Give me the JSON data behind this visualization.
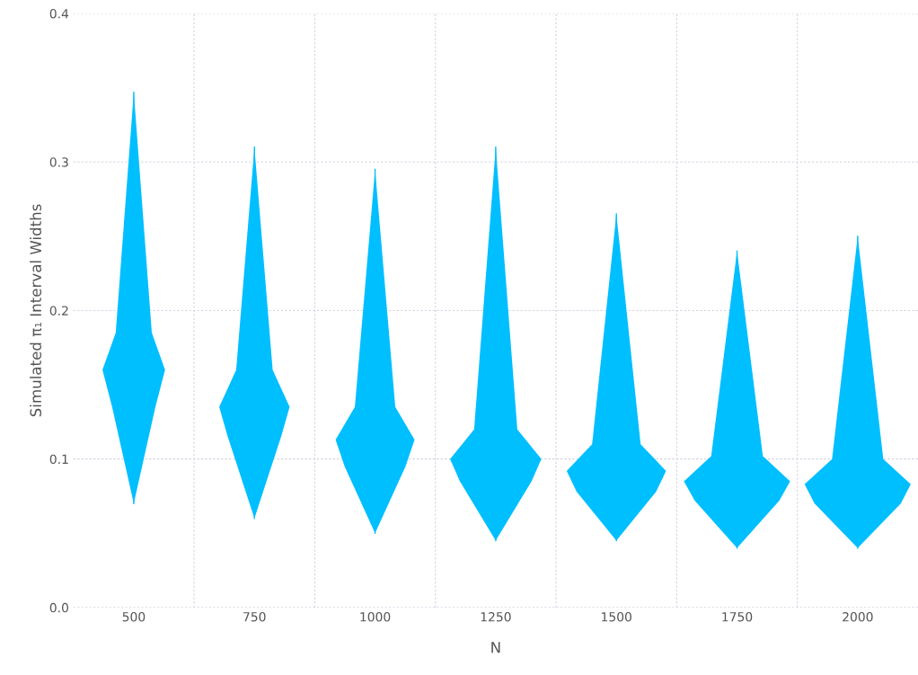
{
  "chart_data": {
    "type": "box",
    "xlabel": "N",
    "ylabel": "Simulated π₁ Interval Widths",
    "categories": [
      "500",
      "750",
      "1000",
      "1250",
      "1500",
      "1750",
      "2000"
    ],
    "ylim": [
      0,
      0.4
    ],
    "yticks": [
      {
        "value": 0,
        "label": "0.0"
      },
      0.1,
      0.2,
      0.3,
      0.4
    ],
    "grid": true,
    "color": "#00bfff",
    "boxes": [
      {
        "low": 0.07,
        "q1": 0.135,
        "median": 0.16,
        "q3": 0.185,
        "high": 0.347
      },
      {
        "low": 0.06,
        "q1": 0.115,
        "median": 0.135,
        "q3": 0.16,
        "high": 0.31
      },
      {
        "low": 0.05,
        "q1": 0.095,
        "median": 0.113,
        "q3": 0.135,
        "high": 0.295
      },
      {
        "low": 0.045,
        "q1": 0.085,
        "median": 0.1,
        "q3": 0.12,
        "high": 0.31
      },
      {
        "low": 0.045,
        "q1": 0.078,
        "median": 0.092,
        "q3": 0.11,
        "high": 0.265
      },
      {
        "low": 0.04,
        "q1": 0.072,
        "median": 0.085,
        "q3": 0.102,
        "high": 0.24
      },
      {
        "low": 0.04,
        "q1": 0.07,
        "median": 0.083,
        "q3": 0.1,
        "high": 0.25
      }
    ]
  }
}
